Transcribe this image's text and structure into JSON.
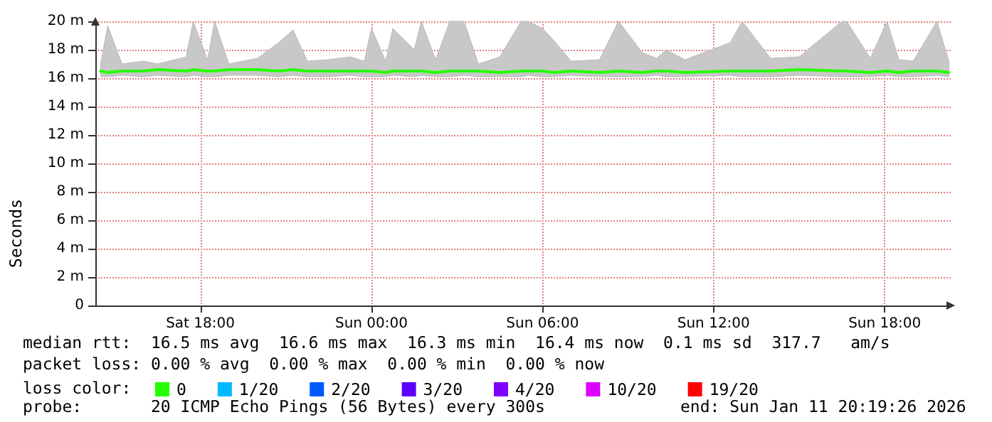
{
  "chart_data": {
    "type": "line",
    "ylabel": "Seconds",
    "legend_title": "loss color:",
    "legend": "bottom",
    "grid": true,
    "marker": "none",
    "line_style": "solid",
    "x": [
      "2026-01-10T14:30",
      "2026-01-10T14:45",
      "2026-01-10T15:15",
      "2026-01-10T16:00",
      "2026-01-10T16:30",
      "2026-01-10T17:30",
      "2026-01-10T17:45",
      "2026-01-10T18:15",
      "2026-01-10T18:30",
      "2026-01-10T19:00",
      "2026-01-10T20:00",
      "2026-01-10T20:45",
      "2026-01-10T21:15",
      "2026-01-10T21:45",
      "2026-01-10T22:30",
      "2026-01-10T23:15",
      "2026-01-10T23:45",
      "2026-01-11T00:00",
      "2026-01-11T00:30",
      "2026-01-11T00:45",
      "2026-01-11T01:30",
      "2026-01-11T01:45",
      "2026-01-11T02:15",
      "2026-01-11T02:45",
      "2026-01-11T03:15",
      "2026-01-11T03:45",
      "2026-01-11T04:30",
      "2026-01-11T05:15",
      "2026-01-11T05:30",
      "2026-01-11T06:00",
      "2026-01-11T06:25",
      "2026-01-11T07:00",
      "2026-01-11T08:00",
      "2026-01-11T08:40",
      "2026-01-11T09:30",
      "2026-01-11T10:00",
      "2026-01-11T10:20",
      "2026-01-11T11:00",
      "2026-01-11T12:35",
      "2026-01-11T13:00",
      "2026-01-11T14:00",
      "2026-01-11T15:00",
      "2026-01-11T16:30",
      "2026-01-11T16:40",
      "2026-01-11T17:30",
      "2026-01-11T18:05",
      "2026-01-11T18:30",
      "2026-01-11T19:00",
      "2026-01-11T19:50",
      "2026-01-11T20:15"
    ],
    "series": [
      {
        "name": "0",
        "color": "#26ff00",
        "values": [
          16.5,
          16.4,
          16.5,
          16.5,
          16.6,
          16.5,
          16.6,
          16.5,
          16.5,
          16.6,
          16.6,
          16.5,
          16.6,
          16.5,
          16.5,
          16.5,
          16.5,
          16.5,
          16.4,
          16.5,
          16.5,
          16.5,
          16.4,
          16.5,
          16.5,
          16.5,
          16.4,
          16.5,
          16.5,
          16.5,
          16.4,
          16.5,
          16.4,
          16.5,
          16.4,
          16.5,
          16.5,
          16.4,
          16.5,
          16.5,
          16.5,
          16.6,
          16.5,
          16.5,
          16.4,
          16.5,
          16.4,
          16.5,
          16.5,
          16.4
        ],
        "lower": [
          16.1,
          16.1,
          16.2,
          16.1,
          16.2,
          16.1,
          16.2,
          16.1,
          16.1,
          16.2,
          16.2,
          16.1,
          16.2,
          16.1,
          16.1,
          16.2,
          16.1,
          16.1,
          16.1,
          16.2,
          16.1,
          16.2,
          16.1,
          16.1,
          16.2,
          16.1,
          16.1,
          16.1,
          16.2,
          16.1,
          16.1,
          16.2,
          16.1,
          16.1,
          16.1,
          16.2,
          16.1,
          16.1,
          16.2,
          16.1,
          16.1,
          16.2,
          16.1,
          16.1,
          16.1,
          16.2,
          16.1,
          16.1,
          16.2,
          16.1
        ],
        "upper": [
          17.0,
          19.7,
          17.0,
          17.2,
          17.0,
          17.5,
          20.0,
          17.3,
          20.0,
          17.0,
          17.4,
          18.5,
          19.4,
          17.2,
          17.3,
          17.5,
          17.2,
          19.5,
          17.2,
          19.5,
          18.0,
          20.0,
          17.3,
          20.0,
          20.0,
          17.0,
          17.5,
          20.0,
          20.0,
          19.5,
          18.6,
          17.2,
          17.3,
          20.0,
          17.8,
          17.4,
          18.0,
          17.3,
          18.5,
          20.0,
          17.4,
          17.5,
          20.0,
          20.0,
          17.4,
          20.0,
          17.3,
          17.2,
          20.0,
          17.2
        ]
      },
      {
        "name": "1/20",
        "color": "#00b8ff",
        "values": [
          null,
          null,
          null,
          null,
          null,
          null,
          null,
          null,
          null,
          null,
          null,
          null,
          null,
          null,
          null,
          null,
          null,
          null,
          null,
          null,
          null,
          null,
          null,
          null,
          null,
          null,
          null,
          null,
          null,
          null,
          null,
          null,
          null,
          null,
          null,
          null,
          null,
          null,
          null,
          null,
          null,
          null,
          null,
          null,
          null,
          null,
          null,
          null,
          null,
          null
        ]
      },
      {
        "name": "2/20",
        "color": "#0059ff",
        "values": [
          null,
          null,
          null,
          null,
          null,
          null,
          null,
          null,
          null,
          null,
          null,
          null,
          null,
          null,
          null,
          null,
          null,
          null,
          null,
          null,
          null,
          null,
          null,
          null,
          null,
          null,
          null,
          null,
          null,
          null,
          null,
          null,
          null,
          null,
          null,
          null,
          null,
          null,
          null,
          null,
          null,
          null,
          null,
          null,
          null,
          null,
          null,
          null,
          null,
          null
        ]
      },
      {
        "name": "3/20",
        "color": "#5e00ff",
        "values": [
          null,
          null,
          null,
          null,
          null,
          null,
          null,
          null,
          null,
          null,
          null,
          null,
          null,
          null,
          null,
          null,
          null,
          null,
          null,
          null,
          null,
          null,
          null,
          null,
          null,
          null,
          null,
          null,
          null,
          null,
          null,
          null,
          null,
          null,
          null,
          null,
          null,
          null,
          null,
          null,
          null,
          null,
          null,
          null,
          null,
          null,
          null,
          null,
          null,
          null
        ]
      },
      {
        "name": "4/20",
        "color": "#7e00ff",
        "values": [
          null,
          null,
          null,
          null,
          null,
          null,
          null,
          null,
          null,
          null,
          null,
          null,
          null,
          null,
          null,
          null,
          null,
          null,
          null,
          null,
          null,
          null,
          null,
          null,
          null,
          null,
          null,
          null,
          null,
          null,
          null,
          null,
          null,
          null,
          null,
          null,
          null,
          null,
          null,
          null,
          null,
          null,
          null,
          null,
          null,
          null,
          null,
          null,
          null,
          null
        ]
      },
      {
        "name": "10/20",
        "color": "#dd00ff",
        "values": [
          null,
          null,
          null,
          null,
          null,
          null,
          null,
          null,
          null,
          null,
          null,
          null,
          null,
          null,
          null,
          null,
          null,
          null,
          null,
          null,
          null,
          null,
          null,
          null,
          null,
          null,
          null,
          null,
          null,
          null,
          null,
          null,
          null,
          null,
          null,
          null,
          null,
          null,
          null,
          null,
          null,
          null,
          null,
          null,
          null,
          null,
          null,
          null,
          null,
          null
        ]
      },
      {
        "name": "19/20",
        "color": "#ff0000",
        "values": [
          null,
          null,
          null,
          null,
          null,
          null,
          null,
          null,
          null,
          null,
          null,
          null,
          null,
          null,
          null,
          null,
          null,
          null,
          null,
          null,
          null,
          null,
          null,
          null,
          null,
          null,
          null,
          null,
          null,
          null,
          null,
          null,
          null,
          null,
          null,
          null,
          null,
          null,
          null,
          null,
          null,
          null,
          null,
          null,
          null,
          null,
          null,
          null,
          null,
          null
        ]
      }
    ],
    "xlim": [
      "2026-01-10T14:19",
      "2026-01-11T20:19"
    ],
    "xticks": [
      {
        "value": "2026-01-10T18:00",
        "label": "Sat 18:00"
      },
      {
        "value": "2026-01-11T00:00",
        "label": "Sun 00:00"
      },
      {
        "value": "2026-01-11T06:00",
        "label": "Sun 06:00"
      },
      {
        "value": "2026-01-11T12:00",
        "label": "Sun 12:00"
      },
      {
        "value": "2026-01-11T18:00",
        "label": "Sun 18:00"
      }
    ],
    "ylim": [
      0,
      20
    ],
    "yticks": [
      0,
      {
        "value": 2,
        "label": "2 m"
      },
      {
        "value": 4,
        "label": "4 m"
      },
      {
        "value": 6,
        "label": "6 m"
      },
      {
        "value": 8,
        "label": "8 m"
      },
      {
        "value": 10,
        "label": "10 m"
      },
      {
        "value": 12,
        "label": "12 m"
      },
      {
        "value": 14,
        "label": "14 m"
      },
      {
        "value": 16,
        "label": "16 m"
      },
      {
        "value": 18,
        "label": "18 m"
      },
      {
        "value": 20,
        "label": "20 m"
      }
    ],
    "annotations": [
      "median rtt:  16.5 ms avg  16.6 ms max  16.3 ms min  16.4 ms now  0.1 ms sd  317.7   am/s",
      "packet loss: 0.00 % avg  0.00 % max  0.00 % min  0.00 % now",
      "probe:       20 ICMP Echo Pings (56 Bytes) every 300s",
      "end: Sun Jan 11 20:19:26 2026"
    ]
  }
}
